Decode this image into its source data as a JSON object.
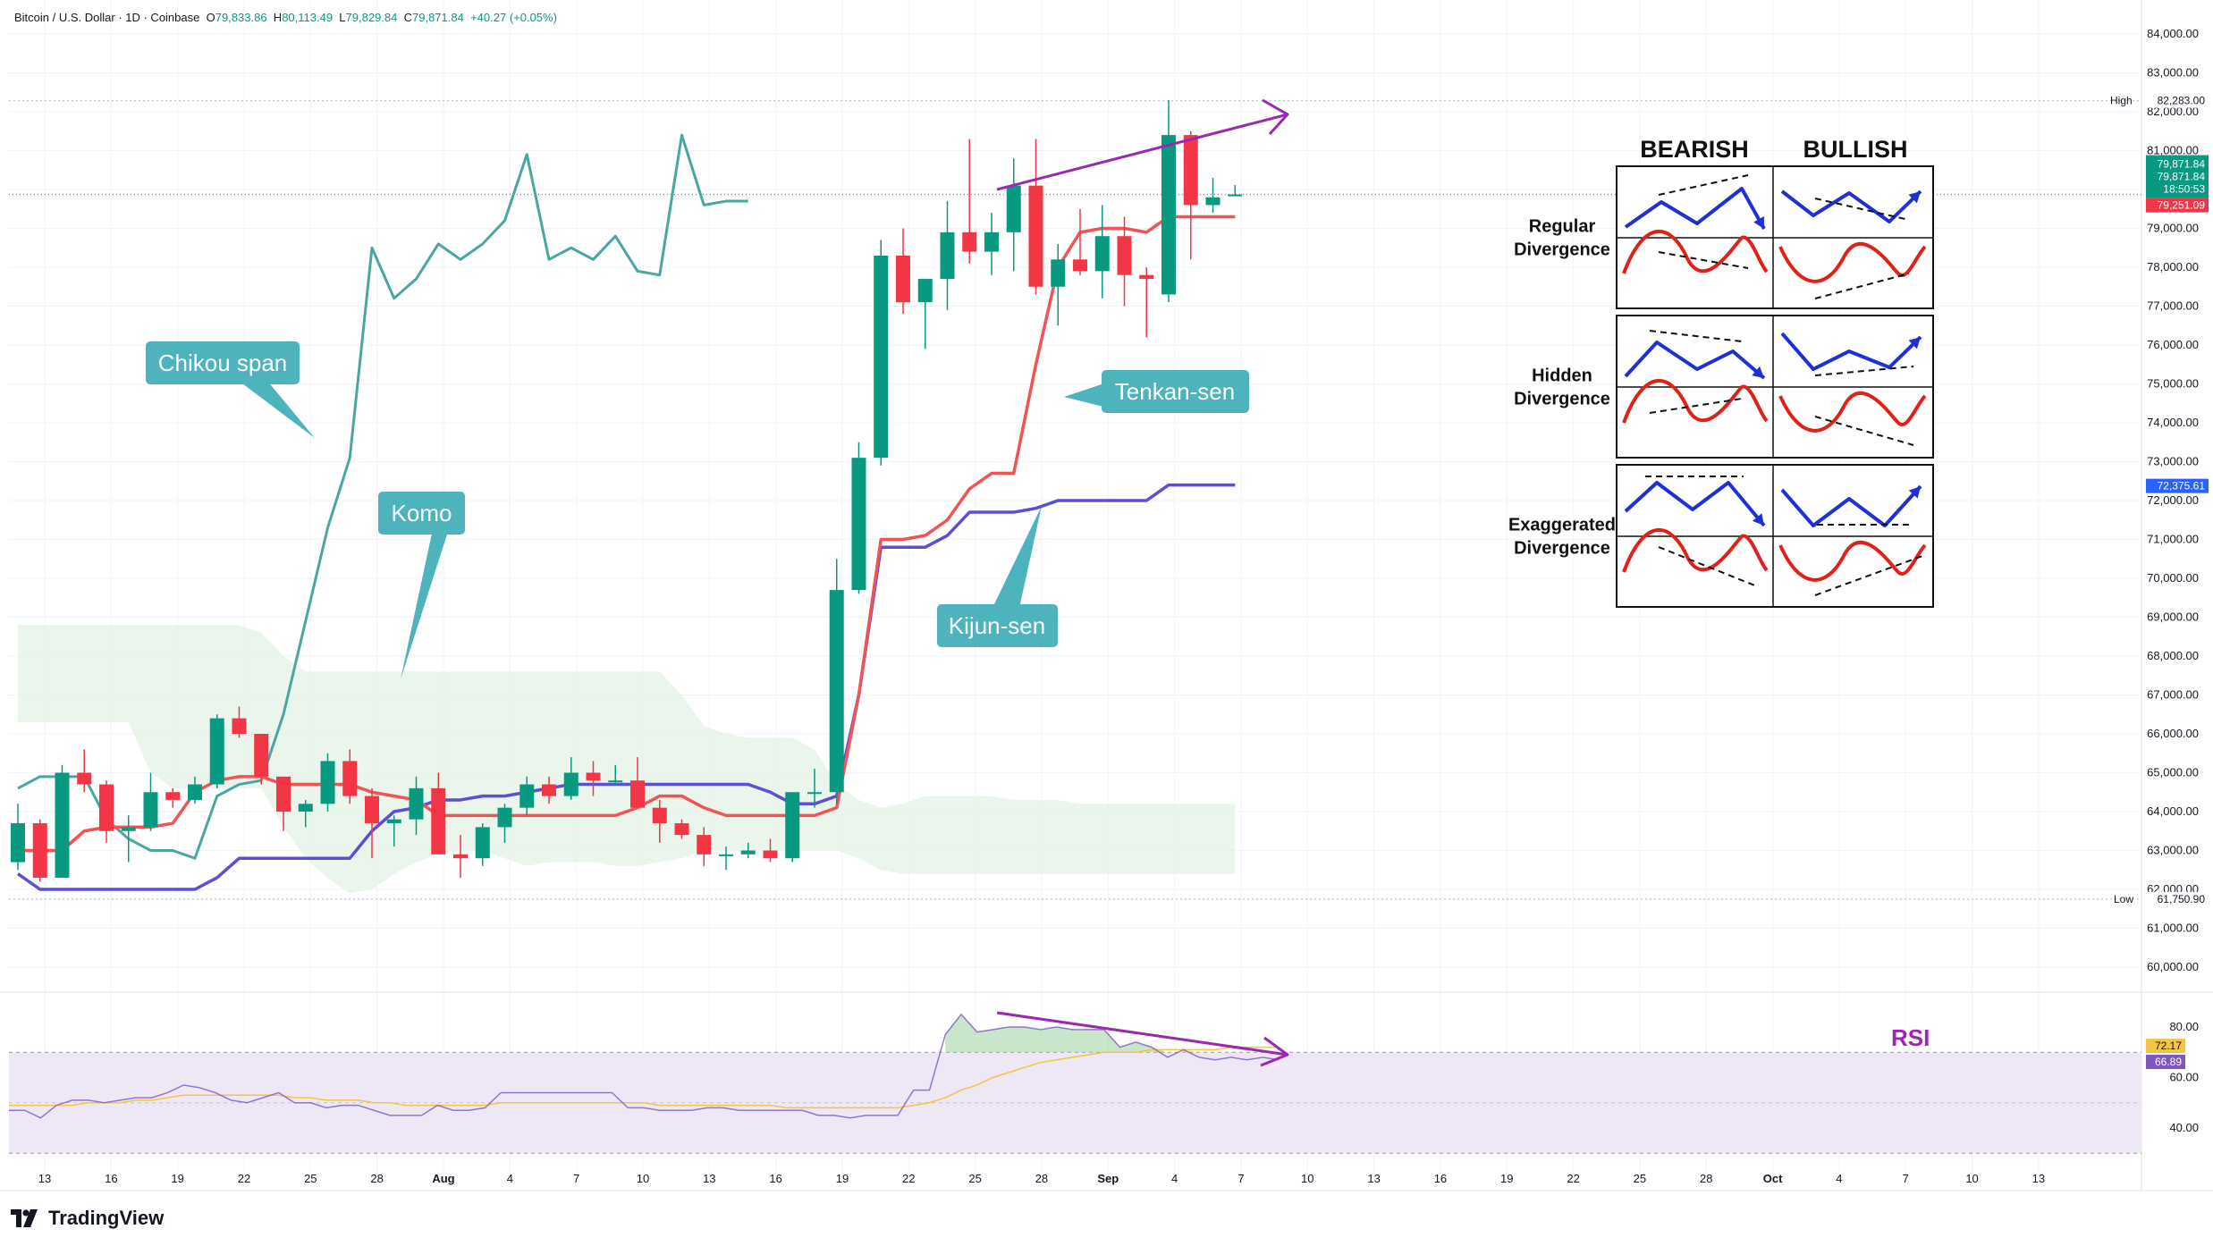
{
  "header": {
    "symbol": "Bitcoin / U.S. Dollar · 1D · Coinbase",
    "o_label": "O",
    "o_val": "79,833.86",
    "h_label": "H",
    "h_val": "80,113.49",
    "l_label": "L",
    "l_val": "79,829.84",
    "c_label": "C",
    "c_val": "79,871.84",
    "chg": "+40.27 (+0.05%)"
  },
  "brand": {
    "name": "TradingView",
    "logo": "tradingview-logo-icon"
  },
  "colors": {
    "up": "#089981",
    "down": "#f23645",
    "tenkan": "#f05454",
    "kijun": "#5b4fd6",
    "chikou": "#4aa6a0",
    "kumo": "#e6f3e8",
    "annot_bg": "#4db3bd",
    "divergence": "#9c27b0",
    "rsi_line": "#7e57c2",
    "rsi_ma": "#f5c542",
    "rsi_band": "#ede7f6"
  },
  "chart_data": [
    {
      "type": "candlestick",
      "price_axis": [
        "84,000.00",
        "83,000.00",
        "82,000.00",
        "81,000.00",
        "80,000.00",
        "79,000.00",
        "78,000.00",
        "77,000.00",
        "76,000.00",
        "75,000.00",
        "74,000.00",
        "73,000.00",
        "72,000.00",
        "71,000.00",
        "70,000.00",
        "69,000.00",
        "68,000.00",
        "67,000.00",
        "66,000.00",
        "65,000.00",
        "64,000.00",
        "63,000.00",
        "62,000.00",
        "61,000.00",
        "60,000.00"
      ],
      "ylim": [
        59500,
        84300
      ],
      "x_ticks": [
        "13",
        "16",
        "19",
        "22",
        "25",
        "28",
        "Aug",
        "4",
        "7",
        "10",
        "13",
        "16",
        "19",
        "22",
        "25",
        "28",
        "Sep",
        "4",
        "7",
        "10",
        "13",
        "16",
        "19",
        "22",
        "25",
        "28",
        "Oct",
        "4",
        "7",
        "10",
        "13"
      ],
      "candles": [
        [
          62700,
          64200,
          62500,
          63700
        ],
        [
          63700,
          63800,
          62200,
          62300
        ],
        [
          62300,
          65200,
          62300,
          65000
        ],
        [
          65000,
          65600,
          64500,
          64700
        ],
        [
          64700,
          64800,
          63200,
          63500
        ],
        [
          63500,
          63900,
          62700,
          63600
        ],
        [
          63600,
          65000,
          63500,
          64500
        ],
        [
          64500,
          64600,
          64100,
          64300
        ],
        [
          64300,
          64900,
          64200,
          64700
        ],
        [
          64700,
          66500,
          64600,
          66400
        ],
        [
          66400,
          66700,
          65900,
          66000
        ],
        [
          66000,
          66000,
          64700,
          64900
        ],
        [
          64900,
          64900,
          63500,
          64000
        ],
        [
          64000,
          64300,
          63600,
          64200
        ],
        [
          64200,
          65500,
          64000,
          65300
        ],
        [
          65300,
          65600,
          64200,
          64400
        ],
        [
          64400,
          64600,
          62800,
          63700
        ],
        [
          63700,
          63900,
          63100,
          63800
        ],
        [
          63800,
          64900,
          63400,
          64600
        ],
        [
          64600,
          65000,
          62900,
          62900
        ],
        [
          62900,
          63400,
          62300,
          62800
        ],
        [
          62800,
          63700,
          62600,
          63600
        ],
        [
          63600,
          64200,
          63200,
          64100
        ],
        [
          64100,
          64900,
          63900,
          64700
        ],
        [
          64700,
          64900,
          64200,
          64400
        ],
        [
          64400,
          65400,
          64300,
          65000
        ],
        [
          65000,
          65300,
          64400,
          64800
        ],
        [
          64800,
          65200,
          64700,
          64800
        ],
        [
          64800,
          65400,
          64300,
          64100
        ],
        [
          64100,
          64300,
          63200,
          63700
        ],
        [
          63700,
          63800,
          63300,
          63400
        ],
        [
          63400,
          63600,
          62600,
          62900
        ],
        [
          62900,
          63100,
          62500,
          62900
        ],
        [
          62900,
          63200,
          62800,
          63000
        ],
        [
          63000,
          63300,
          62700,
          62800
        ],
        [
          62800,
          64500,
          62700,
          64500
        ],
        [
          64500,
          65100,
          64100,
          64500
        ],
        [
          64500,
          70500,
          64200,
          69700
        ],
        [
          69700,
          73500,
          69600,
          73100
        ],
        [
          73100,
          78700,
          72900,
          78300
        ],
        [
          78300,
          79000,
          76800,
          77100
        ],
        [
          77100,
          77600,
          75900,
          77700
        ],
        [
          77700,
          79700,
          76900,
          78900
        ],
        [
          78900,
          81300,
          78100,
          78400
        ],
        [
          78400,
          79400,
          77800,
          78900
        ],
        [
          78900,
          80800,
          77900,
          80100
        ],
        [
          80100,
          81300,
          77300,
          77500
        ],
        [
          77500,
          78600,
          76500,
          78200
        ],
        [
          78200,
          79500,
          77800,
          77900
        ],
        [
          77900,
          79600,
          77200,
          78800
        ],
        [
          78800,
          79300,
          77000,
          77800
        ],
        [
          77800,
          78000,
          76200,
          77700
        ],
        [
          77300,
          82300,
          77100,
          81400
        ],
        [
          81400,
          81500,
          78200,
          79600
        ],
        [
          79600,
          80300,
          79400,
          79800
        ],
        [
          79833.86,
          80113.49,
          79829.84,
          79871.84
        ]
      ],
      "tenkan": [
        63000,
        63000,
        63000,
        63500,
        63600,
        63600,
        63600,
        63700,
        64500,
        64800,
        64900,
        64900,
        64700,
        64700,
        64700,
        64700,
        64500,
        64400,
        64300,
        63900,
        63900,
        63900,
        63900,
        63900,
        63900,
        63900,
        63900,
        63900,
        64100,
        64400,
        64400,
        64100,
        63900,
        63900,
        63900,
        63900,
        63900,
        64100,
        67000,
        71000,
        71000,
        71100,
        71500,
        72300,
        72700,
        72700,
        75500,
        78000,
        78900,
        79000,
        79000,
        78900,
        79300,
        79300,
        79300,
        79300
      ],
      "kijun": [
        62400,
        62000,
        62000,
        62000,
        62000,
        62000,
        62000,
        62000,
        62000,
        62300,
        62800,
        62800,
        62800,
        62800,
        62800,
        62800,
        63500,
        64000,
        64100,
        64300,
        64300,
        64400,
        64400,
        64500,
        64600,
        64700,
        64700,
        64700,
        64700,
        64700,
        64700,
        64700,
        64700,
        64700,
        64500,
        64200,
        64200,
        64400,
        67000,
        70800,
        70800,
        70800,
        71100,
        71700,
        71700,
        71700,
        71800,
        72000,
        72000,
        72000,
        72000,
        72000,
        72400,
        72400,
        72400,
        72400
      ],
      "chikou": [
        64600,
        64900,
        64900,
        64900,
        63800,
        63300,
        63000,
        63000,
        62800,
        64400,
        64700,
        64800,
        66500,
        68900,
        71300,
        73100,
        78500,
        77200,
        77700,
        78600,
        78200,
        78600,
        79200,
        80900,
        78200,
        78500,
        78200,
        78800,
        77900,
        77800,
        81400,
        79600,
        79700,
        79700
      ],
      "kumo_top": [
        68800,
        68800,
        68800,
        68800,
        68800,
        68800,
        68800,
        68800,
        68800,
        68800,
        68800,
        68600,
        68000,
        67600,
        67600,
        67600,
        67600,
        67600,
        67600,
        67600,
        67600,
        67600,
        67600,
        67600,
        67600,
        67600,
        67600,
        67600,
        67600,
        67600,
        67000,
        66200,
        66000,
        65900,
        65900,
        65900,
        65600,
        64700,
        64300,
        64100,
        64200,
        64400,
        64400,
        64400,
        64400,
        64300,
        64300,
        64300,
        64200,
        64200,
        64200,
        64200,
        64200,
        64200,
        64200,
        64200
      ],
      "kumo_bottom": [
        66300,
        66300,
        66300,
        66300,
        66300,
        66300,
        65000,
        64600,
        64600,
        64600,
        64600,
        64600,
        63600,
        62800,
        62300,
        61900,
        62000,
        62400,
        62700,
        62900,
        63000,
        63000,
        62800,
        62600,
        62700,
        62700,
        62700,
        62600,
        62600,
        62700,
        62800,
        63000,
        63000,
        63000,
        63000,
        63000,
        63000,
        63000,
        62800,
        62500,
        62400,
        62400,
        62400,
        62400,
        62400,
        62400,
        62400,
        62400,
        62400,
        62400,
        62400,
        62400,
        62400,
        62400,
        62400,
        62400
      ],
      "price_tags": {
        "high_label": "High",
        "high": "82,283.00",
        "low_label": "Low",
        "low": "61,750.90",
        "last": "79,871.84",
        "last2": "79,871.84",
        "countdown": "18:50:53",
        "tenkan": "79,251.09",
        "kijun": "72,375.61"
      },
      "annotations": {
        "chikou": "Chikou span",
        "komo": "Komo",
        "tenkan": "Tenkan-sen",
        "kijun": "Kijun-sen"
      }
    },
    {
      "type": "line",
      "title": "RSI",
      "ticks": [
        "80.00",
        "60.00",
        "40.00"
      ],
      "ylim": [
        30,
        88
      ],
      "overbought": 70,
      "oversold": 30,
      "midline": 50,
      "rsi": [
        47,
        47,
        44,
        49,
        51,
        51,
        50,
        51,
        52,
        52,
        54,
        57,
        56,
        54,
        51,
        50,
        52,
        54,
        50,
        50,
        48,
        49,
        49,
        47,
        45,
        45,
        45,
        49,
        47,
        47,
        48,
        54,
        54,
        54,
        54,
        54,
        54,
        54,
        54,
        48,
        48,
        47,
        47,
        47,
        48,
        48,
        47,
        47,
        47,
        47,
        47,
        45,
        45,
        44,
        45,
        45,
        45,
        55,
        55,
        77,
        85,
        78,
        79,
        80,
        80,
        79,
        80,
        79,
        79,
        79,
        72,
        74,
        72,
        68,
        71,
        68,
        67,
        68,
        67,
        68,
        67
      ],
      "rsi_ma": [
        49,
        49,
        49,
        49,
        49,
        50,
        50,
        50,
        51,
        51,
        52,
        53,
        53,
        53,
        53,
        53,
        53,
        53,
        52,
        52,
        51,
        51,
        51,
        50,
        50,
        49,
        49,
        49,
        49,
        49,
        49,
        50,
        50,
        50,
        50,
        50,
        50,
        50,
        50,
        50,
        50,
        49,
        49,
        49,
        49,
        49,
        49,
        49,
        49,
        48,
        48,
        48,
        48,
        48,
        48,
        48,
        48,
        49,
        50,
        52,
        55,
        57,
        60,
        62,
        64,
        66,
        67,
        68,
        69,
        70,
        70,
        70,
        71,
        71,
        71,
        71,
        71,
        72,
        72,
        72,
        72
      ],
      "price_tags": {
        "ma": "72.17",
        "rsi": "66.89"
      }
    }
  ],
  "divergence_panel": {
    "headers": [
      "BEARISH",
      "BULLISH"
    ],
    "rows": [
      "Regular Divergence",
      "Hidden Divergence",
      "Exaggerated Divergence"
    ],
    "row_lines": [
      [
        "Regular",
        "Divergence"
      ],
      [
        "Hidden",
        "Divergence"
      ],
      [
        "Exaggerated",
        "Divergence"
      ]
    ]
  }
}
